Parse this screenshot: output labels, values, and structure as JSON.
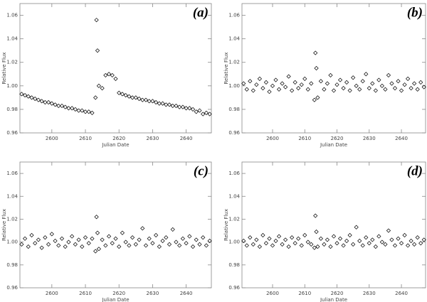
{
  "chart_data": [
    {
      "type": "scatter",
      "panel_label": "(a)",
      "x_label": "Julian Date",
      "y_label": "Relative Flux",
      "color": "#000000",
      "xlim": [
        2590.5,
        2647.5
      ],
      "ylim": [
        0.96,
        1.07
      ],
      "xticks": [
        2600,
        2610,
        2620,
        2630,
        2640
      ],
      "yticks": [
        0.96,
        0.98,
        {
          "value": 1.0,
          "label": "1.00"
        },
        1.02,
        1.04,
        1.06
      ],
      "x": [
        2591,
        2592,
        2593,
        2594,
        2595,
        2596,
        2597,
        2598,
        2599,
        2600,
        2601,
        2602,
        2603,
        2604,
        2605,
        2606,
        2607,
        2608,
        2609,
        2610,
        2611,
        2612,
        2613,
        2613.3,
        2613.6,
        2614,
        2615,
        2616,
        2617,
        2618,
        2619,
        2620,
        2621,
        2622,
        2623,
        2624,
        2625,
        2626,
        2627,
        2628,
        2629,
        2630,
        2631,
        2632,
        2633,
        2634,
        2635,
        2636,
        2637,
        2638,
        2639,
        2640,
        2641,
        2642,
        2643,
        2644,
        2645,
        2646,
        2647
      ],
      "y": [
        0.993,
        0.992,
        0.991,
        0.99,
        0.989,
        0.988,
        0.987,
        0.986,
        0.986,
        0.985,
        0.984,
        0.983,
        0.983,
        0.982,
        0.981,
        0.981,
        0.98,
        0.979,
        0.979,
        0.978,
        0.978,
        0.977,
        0.99,
        1.056,
        1.03,
        1.0,
        0.998,
        1.009,
        1.01,
        1.009,
        1.006,
        0.994,
        0.993,
        0.992,
        0.991,
        0.99,
        0.99,
        0.989,
        0.988,
        0.988,
        0.987,
        0.987,
        0.986,
        0.985,
        0.985,
        0.984,
        0.984,
        0.983,
        0.983,
        0.982,
        0.982,
        0.981,
        0.981,
        0.98,
        0.978,
        0.979,
        0.976,
        0.977,
        0.976
      ]
    },
    {
      "type": "scatter",
      "panel_label": "(b)",
      "x_label": "Julian Date",
      "y_label": "Relative Flux",
      "color": "#000000",
      "xlim": [
        2590.5,
        2647.5
      ],
      "ylim": [
        0.96,
        1.07
      ],
      "xticks": [
        2600,
        2610,
        2620,
        2630,
        2640
      ],
      "yticks": [
        0.96,
        0.98,
        {
          "value": 1.0,
          "label": "1.00"
        },
        1.02,
        1.04,
        1.06
      ],
      "x": [
        2591,
        2592,
        2593,
        2594,
        2595,
        2596,
        2597,
        2598,
        2599,
        2600,
        2601,
        2602,
        2603,
        2604,
        2605,
        2606,
        2607,
        2608,
        2609,
        2610,
        2611,
        2612,
        2613,
        2613.3,
        2613.6,
        2614,
        2615,
        2616,
        2617,
        2618,
        2619,
        2620,
        2621,
        2622,
        2623,
        2624,
        2625,
        2626,
        2627,
        2628,
        2629,
        2630,
        2631,
        2632,
        2633,
        2634,
        2635,
        2636,
        2637,
        2638,
        2639,
        2640,
        2641,
        2642,
        2643,
        2644,
        2645,
        2646,
        2647
      ],
      "y": [
        1.002,
        0.997,
        1.004,
        0.996,
        1.001,
        1.006,
        0.998,
        1.003,
        0.995,
        1.0,
        1.005,
        0.997,
        1.002,
        0.999,
        1.008,
        0.996,
        1.003,
        0.998,
        1.001,
        1.006,
        0.997,
        1.002,
        0.988,
        1.028,
        1.015,
        0.99,
        1.004,
        0.997,
        1.002,
        1.009,
        0.996,
        1.001,
        1.005,
        0.998,
        1.003,
        0.996,
        1.007,
        1.0,
        0.997,
        1.004,
        1.01,
        0.998,
        1.002,
        0.996,
        1.005,
        1.0,
        0.997,
        1.009,
        1.002,
        0.998,
        1.004,
        0.996,
        1.001,
        1.006,
        0.998,
        1.002,
        0.997,
        1.003,
        0.999
      ]
    },
    {
      "type": "scatter",
      "panel_label": "(c)",
      "x_label": "Julian Date",
      "y_label": "Relative Flux",
      "color": "#000000",
      "xlim": [
        2590.5,
        2647.5
      ],
      "ylim": [
        0.96,
        1.07
      ],
      "xticks": [
        2600,
        2610,
        2620,
        2630,
        2640
      ],
      "yticks": [
        0.96,
        0.98,
        {
          "value": 1.0,
          "label": "1.00"
        },
        1.02,
        1.04,
        1.06
      ],
      "x": [
        2591,
        2592,
        2593,
        2594,
        2595,
        2596,
        2597,
        2598,
        2599,
        2600,
        2601,
        2602,
        2603,
        2604,
        2605,
        2606,
        2607,
        2608,
        2609,
        2610,
        2611,
        2612,
        2613,
        2613.3,
        2613.6,
        2614,
        2615,
        2616,
        2617,
        2618,
        2619,
        2620,
        2621,
        2622,
        2623,
        2624,
        2625,
        2626,
        2627,
        2628,
        2629,
        2630,
        2631,
        2632,
        2633,
        2634,
        2635,
        2636,
        2637,
        2638,
        2639,
        2640,
        2641,
        2642,
        2643,
        2644,
        2645,
        2646,
        2647
      ],
      "y": [
        0.998,
        1.003,
        0.996,
        1.006,
        0.999,
        1.002,
        0.995,
        1.004,
        0.998,
        1.007,
        1.001,
        0.997,
        1.003,
        0.996,
        1.0,
        1.005,
        0.998,
        1.002,
        0.996,
        1.004,
        0.999,
        1.003,
        0.992,
        1.022,
        1.008,
        0.994,
        1.002,
        0.997,
        1.005,
        0.999,
        1.003,
        0.996,
        1.008,
        1.0,
        0.997,
        1.004,
        0.998,
        1.002,
        1.012,
        0.997,
        1.003,
        0.999,
        1.006,
        0.996,
        1.001,
        1.004,
        0.998,
        1.011,
        1.0,
        0.997,
        1.003,
        0.999,
        1.005,
        0.996,
        1.002,
        0.998,
        1.004,
        0.997,
        1.001
      ]
    },
    {
      "type": "scatter",
      "panel_label": "(d)",
      "x_label": "Julian Date",
      "y_label": "Relative Flux",
      "color": "#000000",
      "xlim": [
        2590.5,
        2647.5
      ],
      "ylim": [
        0.96,
        1.07
      ],
      "xticks": [
        2600,
        2610,
        2620,
        2630,
        2640
      ],
      "yticks": [
        0.96,
        0.98,
        {
          "value": 1.0,
          "label": "1.00"
        },
        1.02,
        1.04,
        1.06
      ],
      "x": [
        2591,
        2592,
        2593,
        2594,
        2595,
        2596,
        2597,
        2598,
        2599,
        2600,
        2601,
        2602,
        2603,
        2604,
        2605,
        2606,
        2607,
        2608,
        2609,
        2610,
        2611,
        2612,
        2613,
        2613.3,
        2613.6,
        2614,
        2615,
        2616,
        2617,
        2618,
        2619,
        2620,
        2621,
        2622,
        2623,
        2624,
        2625,
        2626,
        2627,
        2628,
        2629,
        2630,
        2631,
        2632,
        2633,
        2634,
        2635,
        2636,
        2637,
        2638,
        2639,
        2640,
        2641,
        2642,
        2643,
        2644,
        2645,
        2646,
        2647
      ],
      "y": [
        1.001,
        0.997,
        1.004,
        0.998,
        1.002,
        0.996,
        1.006,
        0.999,
        1.003,
        0.997,
        1.001,
        1.005,
        0.998,
        1.002,
        0.996,
        1.004,
        0.999,
        1.003,
        0.997,
        1.006,
        1.0,
        0.998,
        0.995,
        1.023,
        1.009,
        0.996,
        1.003,
        0.998,
        1.002,
        0.996,
        1.005,
        0.999,
        1.003,
        0.997,
        1.001,
        1.006,
        0.998,
        1.013,
        1.001,
        0.997,
        1.004,
        0.999,
        1.002,
        0.996,
        1.005,
        1.0,
        0.998,
        1.01,
        1.002,
        0.997,
        1.003,
        0.999,
        1.006,
        0.997,
        1.001,
        0.998,
        1.004,
        0.999,
        1.002
      ]
    }
  ]
}
